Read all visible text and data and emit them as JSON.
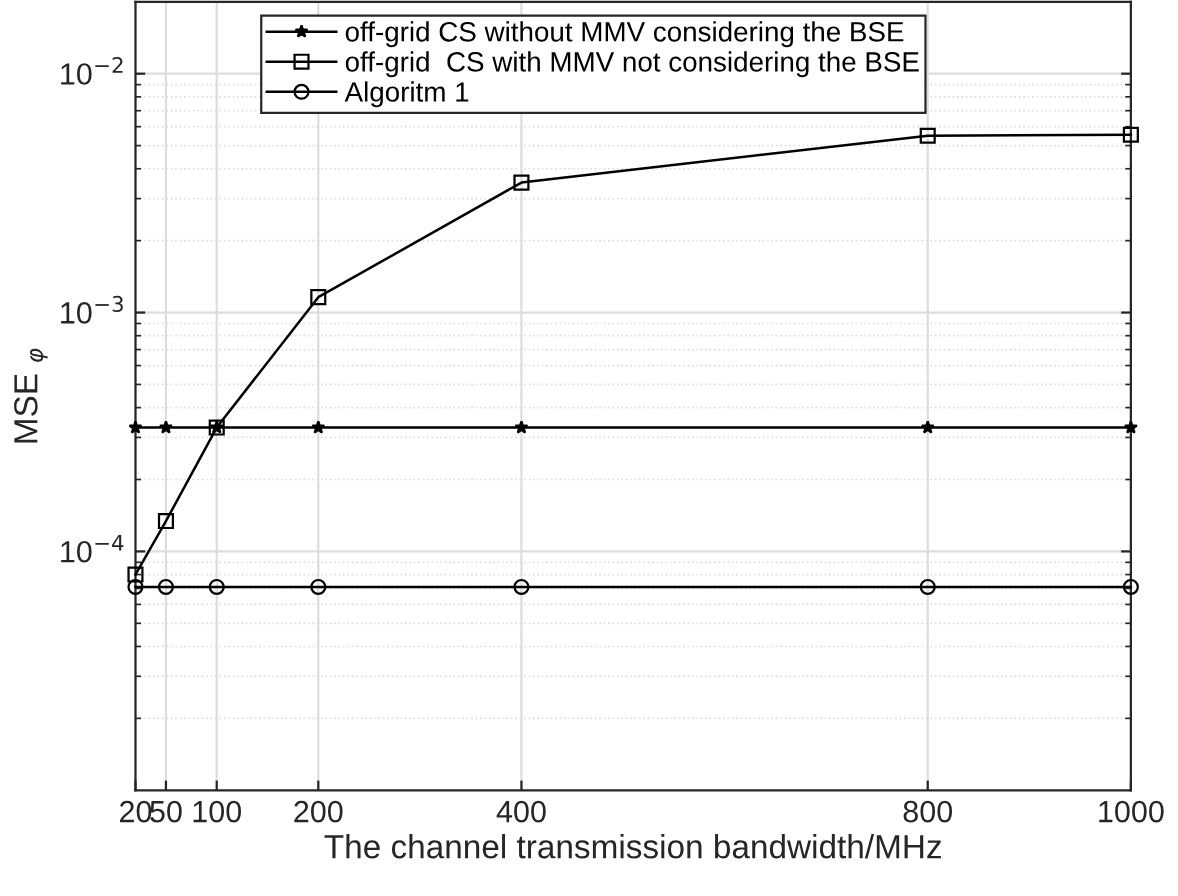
{
  "chart_data": {
    "type": "line",
    "xlabel": "The channel transmission bandwidth/MHz",
    "ylabel": "MSE $_{φ}$",
    "x": [
      20,
      50,
      100,
      200,
      400,
      800,
      1000
    ],
    "series": [
      {
        "name": "off-grid CS without MMV considering the BSE",
        "color": "#000000",
        "marker": "star",
        "values": [
          0.00033,
          0.00033,
          0.00033,
          0.00033,
          0.00033,
          0.00033,
          0.00033
        ]
      },
      {
        "name": "off-grid  CS with MMV not considering the BSE",
        "color": "#000000",
        "marker": "square",
        "values": [
          8e-05,
          0.000134,
          0.00033,
          0.00116,
          0.0035,
          0.0055,
          0.00555
        ]
      },
      {
        "name": "Algoritm 1",
        "color": "#000000",
        "marker": "circle",
        "values": [
          7.1e-05,
          7.1e-05,
          7.1e-05,
          7.1e-05,
          7.1e-05,
          7.1e-05,
          7.1e-05
        ]
      }
    ],
    "log": "y",
    "xlim": [
      20,
      1000
    ],
    "xticks": [
      20,
      50,
      100,
      200,
      400,
      800,
      1000
    ],
    "ylim": [
      1e-05,
      0.02
    ],
    "yticks": [
      {
        "value": 0.0001,
        "label": "10$^{−4}$"
      },
      {
        "value": 0.001,
        "label": "10$^{−3}$"
      },
      {
        "value": 0.01,
        "label": "10$^{−2}$"
      }
    ],
    "grid": true,
    "legend": "top",
    "line_style": "solid"
  }
}
